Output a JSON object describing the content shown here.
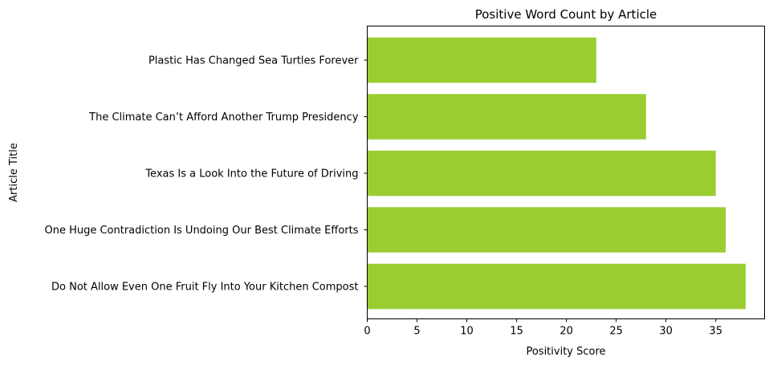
{
  "chart_data": {
    "type": "bar",
    "orientation": "horizontal",
    "title": "Positive Word Count by Article",
    "xlabel": "Positivity Score",
    "ylabel": "Article Title",
    "categories": [
      "Do Not Allow Even One Fruit Fly Into Your Kitchen Compost",
      "One Huge Contradiction Is Undoing Our Best Climate Efforts",
      "Texas Is a Look Into the Future of Driving",
      "The Climate Can’t Afford Another Trump Presidency",
      "Plastic Has Changed Sea Turtles Forever"
    ],
    "values": [
      38,
      36,
      35,
      28,
      23
    ],
    "xlim": [
      0,
      39.9
    ],
    "xticks": [
      0,
      5,
      10,
      15,
      20,
      25,
      30,
      35
    ],
    "bar_color": "#9acd32",
    "grid": false,
    "legend": "none"
  }
}
